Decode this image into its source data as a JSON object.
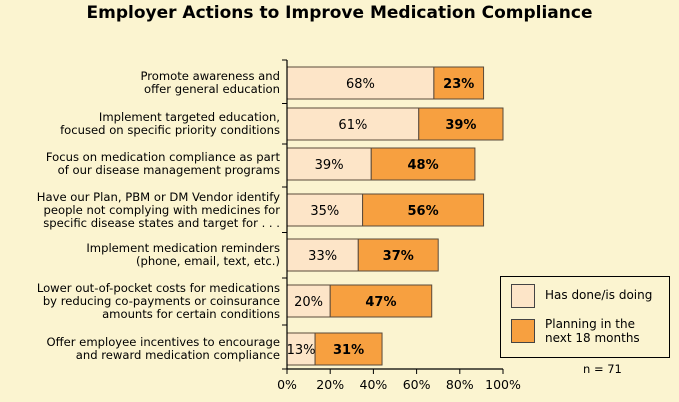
{
  "chart_data": {
    "type": "bar",
    "stacked": true,
    "orientation": "horizontal",
    "title": "Employer Actions to Improve Medication Compliance",
    "categories": [
      "Promote awareness and\noffer general education",
      "Implement targeted education,\nfocused on specific priority conditions",
      "Focus on medication compliance as part\nof our disease management programs",
      "Have our Plan, PBM or DM Vendor identify\npeople not complying with medicines for\nspecific disease states and target for . . .",
      "Implement medication reminders\n(phone, email, text, etc.)",
      "Lower out-of-pocket costs for medications\nby reducing co-payments or coinsurance\namounts for certain conditions",
      "Offer employee incentives to encourage\nand reward medication compliance"
    ],
    "series": [
      {
        "name": "Has done/is doing",
        "values": [
          68,
          61,
          39,
          35,
          33,
          20,
          13
        ],
        "labels": [
          "68%",
          "61%",
          "39%",
          "35%",
          "33%",
          "20%",
          "13%"
        ],
        "color": "#fde5c8"
      },
      {
        "name": "Planning in the next 18 months",
        "values": [
          23,
          39,
          48,
          56,
          37,
          47,
          31
        ],
        "labels": [
          "23%",
          "39%",
          "48%",
          "56%",
          "37%",
          "47%",
          "31%"
        ],
        "color": "#f7a040"
      }
    ],
    "xlim": [
      0,
      100
    ],
    "xticks": [
      "0%",
      "20%",
      "40%",
      "60%",
      "80%",
      "100%"
    ],
    "legend_position": "bottom-right",
    "note": "n = 71"
  }
}
